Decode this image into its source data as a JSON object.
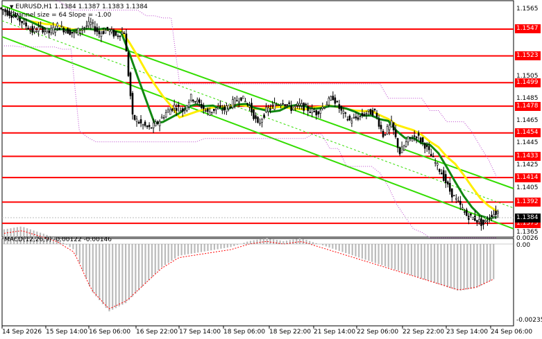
{
  "header": {
    "symbol_line": "EURUSD,H1  1.1384 1.1387 1.1383 1.1384",
    "channel_line": "Channel size = 64 Slope = -1.00"
  },
  "macd": {
    "label": "MACD(12,26,9) -0.00122 -0.00146",
    "axis_top": "0.0026",
    "axis_zero": "0.00",
    "axis_bottom": "-0.00235"
  },
  "price_axis": [
    "1.1565",
    "1.1547",
    "1.1523",
    "1.1505",
    "1.1499",
    "1.1485",
    "1.1478",
    "1.1465",
    "1.1454",
    "1.1445",
    "1.1433",
    "1.1425",
    "1.1414",
    "1.1405",
    "1.1392",
    "1.1384",
    "1.1373",
    "1.1365"
  ],
  "levels": [
    {
      "price": 1.1547,
      "label": "1.1547"
    },
    {
      "price": 1.1523,
      "label": "1.1523"
    },
    {
      "price": 1.1499,
      "label": "1.1499"
    },
    {
      "price": 1.1478,
      "label": "1.1478"
    },
    {
      "price": 1.1454,
      "label": "1.1454"
    },
    {
      "price": 1.1433,
      "label": "1.1433"
    },
    {
      "price": 1.1414,
      "label": "1.1414"
    },
    {
      "price": 1.1392,
      "label": "1.1392"
    },
    {
      "price": 1.1373,
      "label": "1.1373"
    }
  ],
  "current_price": "1.1384",
  "time_axis": [
    "14 Sep 2026",
    "15 Sep 14:00",
    "16 Sep 06:00",
    "16 Sep 22:00",
    "17 Sep 14:00",
    "18 Sep 06:00",
    "18 Sep 22:00",
    "21 Sep 14:00",
    "22 Sep 06:00",
    "22 Sep 22:00",
    "23 Sep 14:00",
    "24 Sep 06:00"
  ],
  "colors": {
    "level_line": "#ff0000",
    "channel": "#33dd00",
    "ma_fast": "#118811",
    "ma_slow": "#ffee00",
    "bollinger": "#bb44cc",
    "candles": "#000000",
    "macd_hist": "#bbbbbb",
    "macd_signal": "#ff0000"
  },
  "chart_data": {
    "type": "candlestick",
    "symbol": "EURUSD",
    "timeframe": "H1",
    "ylim": [
      1.1358,
      1.1572
    ],
    "close_path": [
      1.1562,
      1.1558,
      1.1552,
      1.1545,
      1.1548,
      1.1544,
      1.155,
      1.1546,
      1.1543,
      1.1548,
      1.1552,
      1.1543,
      1.1547,
      1.1541,
      1.1545,
      1.1468,
      1.1462,
      1.1458,
      1.1463,
      1.1472,
      1.1478,
      1.1474,
      1.1486,
      1.148,
      1.1472,
      1.1476,
      1.1475,
      1.1481,
      1.1486,
      1.1478,
      1.1461,
      1.1474,
      1.1479,
      1.1482,
      1.1476,
      1.1479,
      1.1475,
      1.1472,
      1.1479,
      1.1486,
      1.1473,
      1.1465,
      1.1468,
      1.1472,
      1.1473,
      1.1452,
      1.1462,
      1.1436,
      1.1448,
      1.1452,
      1.1443,
      1.143,
      1.1418,
      1.1402,
      1.1391,
      1.138,
      1.1377,
      1.1372,
      1.1381,
      1.1384
    ],
    "macd_hist_path": [
      0.0005,
      0.0006,
      0.0004,
      0.0002,
      -0.0002,
      -0.0016,
      -0.0023,
      -0.002,
      -0.0014,
      -0.0008,
      -0.0004,
      -0.0003,
      -0.0002,
      -0.0001,
      0.0001,
      0.0002,
      0.0001,
      0.0002,
      0.0,
      -0.0002,
      -0.0004,
      -0.0006,
      -0.0008,
      -0.001,
      -0.0012,
      -0.0014,
      -0.0016,
      -0.0015,
      -0.0012
    ]
  }
}
